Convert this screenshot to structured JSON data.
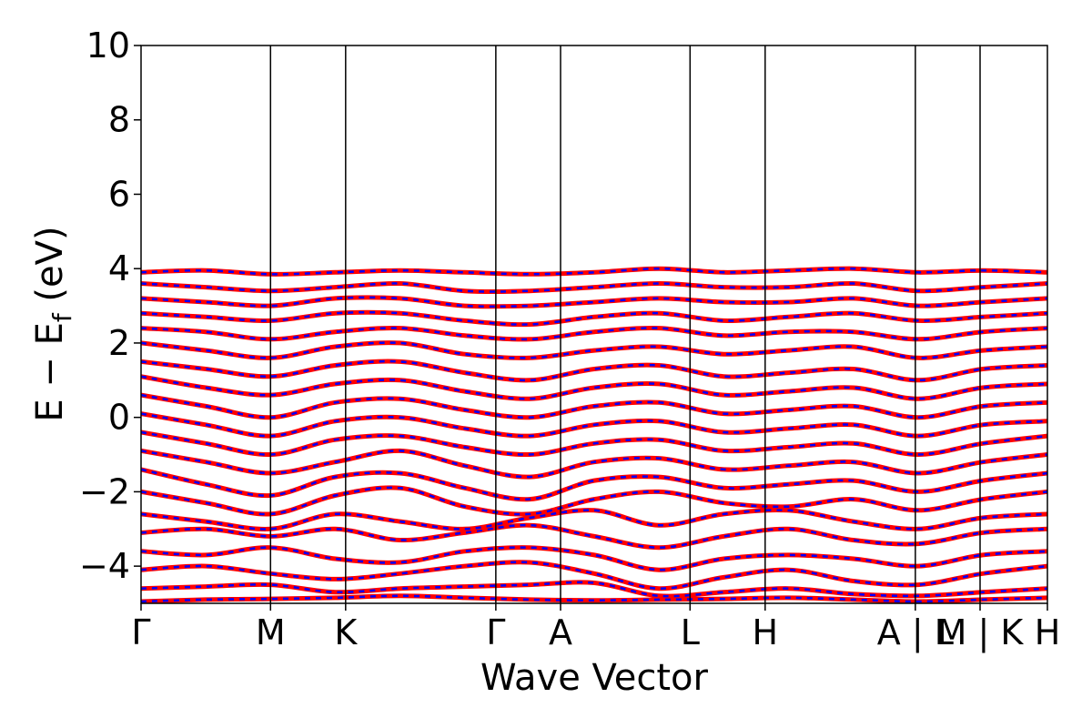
{
  "chart_data": {
    "type": "line",
    "xlabel": "Wave Vector",
    "ylabel": "E − E",
    "ylabel_sub": "f",
    "ylabel_unit": " (eV)",
    "ylim": [
      -5,
      10
    ],
    "yticks": [
      -4,
      -2,
      0,
      2,
      4,
      6,
      8,
      10
    ],
    "ytick_labels": [
      "−4",
      "−2",
      "0",
      "2",
      "4",
      "6",
      "8",
      "10"
    ],
    "xlim": [
      0,
      7.0
    ],
    "kpoints": [
      {
        "label": "Γ",
        "x": 0.0
      },
      {
        "label": "M",
        "x": 1.0
      },
      {
        "label": "K",
        "x": 1.58
      },
      {
        "label": "Γ",
        "x": 2.74
      },
      {
        "label": "A",
        "x": 3.24
      },
      {
        "label": "L",
        "x": 4.24
      },
      {
        "label": "H",
        "x": 4.82
      },
      {
        "label": "A | L",
        "x": 5.98
      },
      {
        "label": "M | K",
        "x": 6.48
      },
      {
        "label": "H",
        "x": 7.0
      }
    ],
    "series": [
      {
        "color": "#ff0000",
        "style": "solid"
      },
      {
        "color": "#0000ff",
        "style": "dashed"
      }
    ],
    "bands": [
      {
        "y": [
          -4.95,
          -4.9,
          -4.88,
          -4.85,
          -4.8,
          -4.85,
          -4.9,
          -4.92,
          -4.9,
          -4.88,
          -4.85,
          -4.9,
          -4.95,
          -4.9,
          -4.85
        ]
      },
      {
        "y": [
          -4.6,
          -4.55,
          -4.5,
          -4.7,
          -4.6,
          -4.55,
          -4.5,
          -4.45,
          -4.8,
          -4.7,
          -4.6,
          -4.75,
          -4.8,
          -4.7,
          -4.6
        ]
      },
      {
        "y": [
          -4.1,
          -4.0,
          -4.2,
          -4.35,
          -4.2,
          -4.0,
          -3.9,
          -4.2,
          -4.6,
          -4.3,
          -4.1,
          -4.4,
          -4.5,
          -4.2,
          -4.0
        ]
      },
      {
        "y": [
          -3.6,
          -3.7,
          -3.5,
          -3.8,
          -3.9,
          -3.6,
          -3.5,
          -3.7,
          -4.1,
          -3.8,
          -3.7,
          -3.8,
          -4.0,
          -3.7,
          -3.6
        ]
      },
      {
        "y": [
          -3.1,
          -3.0,
          -3.2,
          -3.0,
          -3.3,
          -3.1,
          -2.9,
          -3.2,
          -3.5,
          -3.2,
          -3.0,
          -3.3,
          -3.4,
          -3.1,
          -3.0
        ]
      },
      {
        "y": [
          -2.6,
          -2.8,
          -3.0,
          -2.6,
          -2.8,
          -3.0,
          -2.7,
          -2.5,
          -2.9,
          -2.6,
          -2.5,
          -2.8,
          -3.0,
          -2.7,
          -2.6
        ]
      },
      {
        "y": [
          -2.0,
          -2.3,
          -2.6,
          -2.1,
          -1.9,
          -2.4,
          -2.6,
          -2.2,
          -2.0,
          -2.3,
          -2.4,
          -2.2,
          -2.5,
          -2.2,
          -2.0
        ]
      },
      {
        "y": [
          -1.4,
          -1.8,
          -2.1,
          -1.6,
          -1.5,
          -1.9,
          -2.2,
          -1.7,
          -1.6,
          -1.9,
          -1.8,
          -1.7,
          -2.0,
          -1.7,
          -1.5
        ]
      },
      {
        "y": [
          -0.9,
          -1.2,
          -1.5,
          -1.2,
          -0.9,
          -1.3,
          -1.6,
          -1.2,
          -1.1,
          -1.4,
          -1.3,
          -1.2,
          -1.5,
          -1.2,
          -1.0
        ]
      },
      {
        "y": [
          -0.4,
          -0.7,
          -1.0,
          -0.6,
          -0.5,
          -0.8,
          -1.0,
          -0.7,
          -0.6,
          -0.9,
          -0.8,
          -0.7,
          -1.0,
          -0.7,
          -0.5
        ]
      },
      {
        "y": [
          0.1,
          -0.2,
          -0.5,
          -0.1,
          0.0,
          -0.3,
          -0.5,
          -0.2,
          -0.1,
          -0.4,
          -0.3,
          -0.2,
          -0.5,
          -0.2,
          -0.1
        ]
      },
      {
        "y": [
          0.6,
          0.3,
          0.0,
          0.4,
          0.5,
          0.2,
          0.0,
          0.3,
          0.4,
          0.1,
          0.2,
          0.3,
          0.0,
          0.3,
          0.4
        ]
      },
      {
        "y": [
          1.1,
          0.8,
          0.6,
          0.9,
          1.0,
          0.7,
          0.5,
          0.8,
          0.9,
          0.6,
          0.7,
          0.8,
          0.5,
          0.8,
          0.9
        ]
      },
      {
        "y": [
          1.5,
          1.3,
          1.1,
          1.4,
          1.5,
          1.2,
          1.0,
          1.3,
          1.4,
          1.1,
          1.2,
          1.3,
          1.0,
          1.3,
          1.4
        ]
      },
      {
        "y": [
          2.0,
          1.8,
          1.6,
          1.9,
          2.0,
          1.7,
          1.6,
          1.8,
          1.9,
          1.7,
          1.8,
          1.9,
          1.6,
          1.8,
          1.9
        ]
      },
      {
        "y": [
          2.4,
          2.3,
          2.1,
          2.3,
          2.4,
          2.2,
          2.1,
          2.3,
          2.4,
          2.2,
          2.3,
          2.3,
          2.1,
          2.3,
          2.4
        ]
      },
      {
        "y": [
          2.8,
          2.7,
          2.6,
          2.8,
          2.8,
          2.6,
          2.5,
          2.7,
          2.8,
          2.6,
          2.7,
          2.8,
          2.6,
          2.7,
          2.8
        ]
      },
      {
        "y": [
          3.2,
          3.1,
          3.0,
          3.2,
          3.2,
          3.0,
          3.0,
          3.1,
          3.2,
          3.1,
          3.1,
          3.2,
          3.0,
          3.1,
          3.2
        ]
      },
      {
        "y": [
          3.6,
          3.5,
          3.4,
          3.5,
          3.6,
          3.4,
          3.4,
          3.5,
          3.6,
          3.5,
          3.5,
          3.6,
          3.4,
          3.5,
          3.6
        ]
      },
      {
        "y": [
          3.9,
          3.95,
          3.85,
          3.9,
          3.95,
          3.9,
          3.85,
          3.9,
          4.0,
          3.9,
          3.95,
          4.0,
          3.9,
          3.95,
          3.9
        ]
      }
    ]
  }
}
